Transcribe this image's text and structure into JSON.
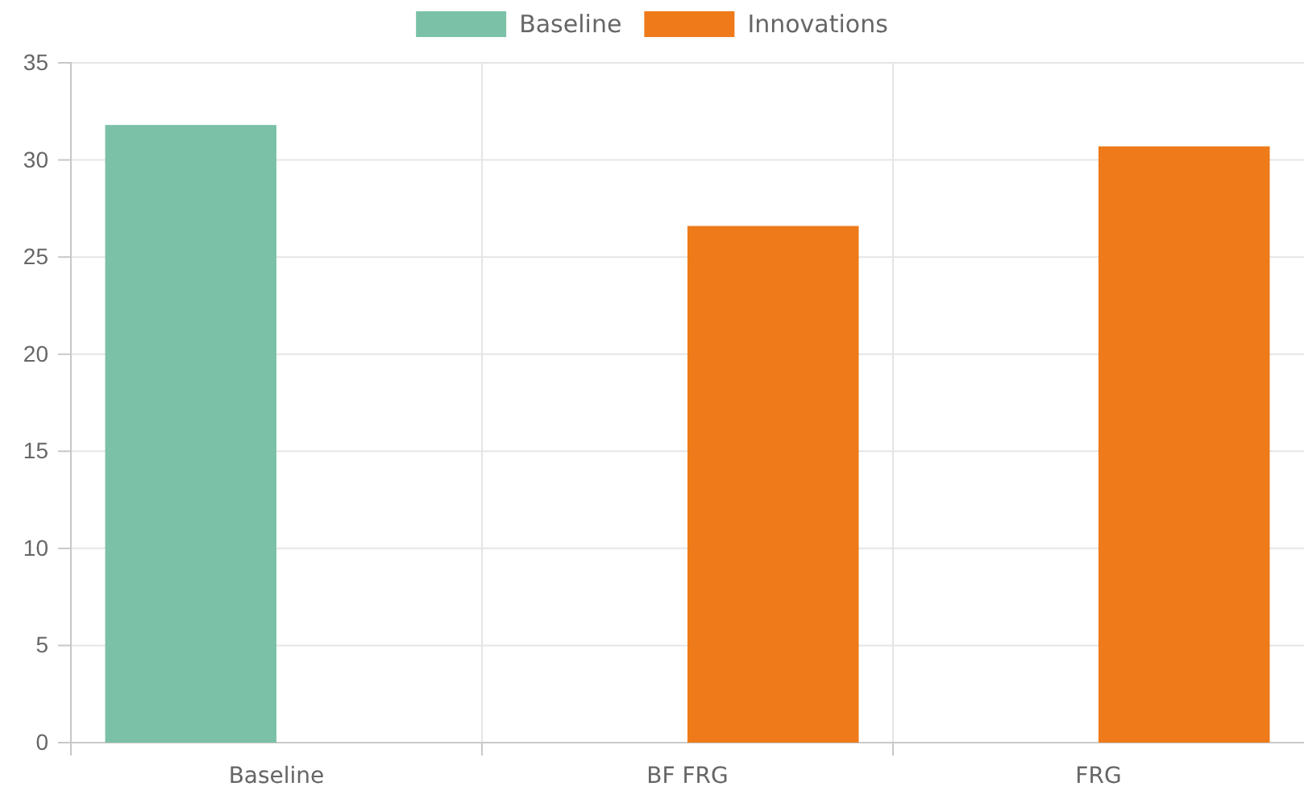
{
  "chart_data": {
    "type": "bar",
    "categories": [
      "Baseline",
      "BF FRG",
      "FRG"
    ],
    "series": [
      {
        "name": "Baseline",
        "color": "#7bc1a7",
        "values": [
          31.8,
          null,
          null
        ]
      },
      {
        "name": "Innovations",
        "color": "#ee7a1a",
        "values": [
          null,
          26.6,
          30.7
        ]
      }
    ],
    "ylim": [
      0,
      35
    ],
    "yticks": [
      0,
      5,
      10,
      15,
      20,
      25,
      30,
      35
    ],
    "grid": true,
    "legend": "top"
  }
}
